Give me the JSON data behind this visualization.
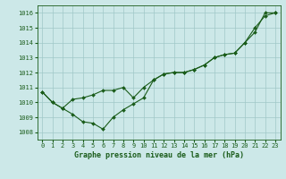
{
  "title": "Graphe pression niveau de la mer (hPa)",
  "bg_color": "#cce8e8",
  "grid_color": "#a0c8c8",
  "line_color": "#1a5c1a",
  "xlim": [
    -0.5,
    23.5
  ],
  "ylim": [
    1007.5,
    1016.5
  ],
  "xticks": [
    0,
    1,
    2,
    3,
    4,
    5,
    6,
    7,
    8,
    9,
    10,
    11,
    12,
    13,
    14,
    15,
    16,
    17,
    18,
    19,
    20,
    21,
    22,
    23
  ],
  "yticks": [
    1008,
    1009,
    1010,
    1011,
    1012,
    1013,
    1014,
    1015,
    1016
  ],
  "line1_x": [
    0,
    1,
    2,
    3,
    4,
    5,
    6,
    7,
    8,
    9,
    10,
    11,
    12,
    13,
    14,
    15,
    16,
    17,
    18,
    19,
    20,
    21,
    22,
    23
  ],
  "line1_y": [
    1010.7,
    1010.0,
    1009.6,
    1009.2,
    1008.7,
    1008.6,
    1008.2,
    1009.0,
    1009.5,
    1009.9,
    1010.3,
    1011.5,
    1011.9,
    1012.0,
    1012.0,
    1012.2,
    1012.5,
    1013.0,
    1013.2,
    1013.3,
    1014.0,
    1014.7,
    1016.0,
    1016.0
  ],
  "line2_x": [
    0,
    1,
    2,
    3,
    4,
    5,
    6,
    7,
    8,
    9,
    10,
    11,
    12,
    13,
    14,
    15,
    16,
    17,
    18,
    19,
    20,
    21,
    22,
    23
  ],
  "line2_y": [
    1010.7,
    1010.0,
    1009.6,
    1010.2,
    1010.3,
    1010.5,
    1010.8,
    1010.8,
    1011.0,
    1010.3,
    1011.0,
    1011.5,
    1011.9,
    1012.0,
    1012.0,
    1012.2,
    1012.5,
    1013.0,
    1013.2,
    1013.3,
    1014.0,
    1015.0,
    1015.8,
    1016.0
  ],
  "xlabel_fontsize": 6.0,
  "tick_fontsize": 5.0
}
